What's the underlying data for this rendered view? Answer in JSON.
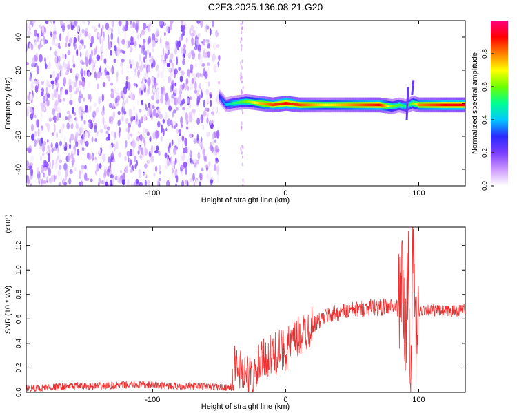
{
  "title": "C2E3.2025.136.08.21.G20",
  "chart_data": [
    {
      "type": "heatmap",
      "title": "C2E3.2025.136.08.21.G20",
      "xlabel": "Height of straight line (km)",
      "ylabel": "Frequency (Hz)",
      "xlim": [
        -195,
        135
      ],
      "ylim": [
        -50,
        50
      ],
      "xticks": [
        -100,
        0,
        100
      ],
      "xtick_labels": [
        "-100",
        "0",
        "100"
      ],
      "yticks": [
        -40,
        -20,
        0,
        20,
        40
      ],
      "ytick_labels": [
        "-40",
        "-20",
        "0",
        "20",
        "40"
      ],
      "noise_region_x": [
        -195,
        -50
      ],
      "signal_trace": {
        "name": "",
        "x": [
          -50,
          -45,
          -40,
          -30,
          -20,
          -10,
          0,
          10,
          30,
          50,
          70,
          80,
          85,
          90,
          95,
          100,
          120,
          135
        ],
        "y": [
          4,
          -1,
          0,
          1,
          0,
          -1,
          0,
          -1,
          -1,
          -1,
          -1,
          -2,
          -1,
          -2,
          0,
          -1,
          -1,
          -1
        ],
        "amplitude": [
          0.3,
          0.4,
          0.5,
          0.6,
          0.75,
          0.85,
          0.9,
          0.85,
          0.7,
          0.8,
          0.9,
          0.6,
          0.55,
          0.5,
          0.6,
          0.8,
          0.9,
          0.9
        ]
      },
      "colorbar": {
        "label": "Normalized spectral amplitude",
        "range": [
          0,
          1
        ],
        "ticks": [
          0.0,
          0.2,
          0.4,
          0.6,
          0.8
        ],
        "tick_labels": [
          "0.0",
          "0.2",
          "0.4",
          "0.6",
          "0.8"
        ],
        "colormap": [
          "#ffffff",
          "#cc99ff",
          "#7a3cff",
          "#2a2aff",
          "#00c8ff",
          "#00ff90",
          "#6cff00",
          "#ffff00",
          "#ff8000",
          "#ff0000",
          "#ff0080"
        ]
      }
    },
    {
      "type": "line",
      "xlabel": "Height of straight line (km)",
      "ylabel": "SNR (10 * v/v)",
      "y_multiplier_label": "(x10⁴)",
      "xlim": [
        -195,
        135
      ],
      "ylim": [
        0,
        1.35
      ],
      "xticks": [
        -100,
        0,
        100
      ],
      "xtick_labels": [
        "-100",
        "0",
        "100"
      ],
      "yticks": [
        0.0,
        0.2,
        0.4,
        0.6,
        0.8,
        1.0,
        1.2
      ],
      "ytick_labels": [
        "0.0",
        "0.2",
        "0.4",
        "0.6",
        "0.8",
        "1.0",
        "1.2"
      ],
      "series": [
        {
          "name": "",
          "color": "#f03030",
          "x": [
            -195,
            -180,
            -160,
            -140,
            -120,
            -100,
            -80,
            -60,
            -50,
            -40,
            -38,
            -35,
            -30,
            -25,
            -20,
            -15,
            -10,
            -5,
            0,
            5,
            10,
            15,
            20,
            25,
            30,
            35,
            40,
            45,
            50,
            55,
            60,
            65,
            70,
            75,
            80,
            85,
            88,
            90,
            92,
            94,
            96,
            98,
            100,
            105,
            110,
            120,
            130,
            135
          ],
          "y": [
            0.03,
            0.04,
            0.05,
            0.05,
            0.06,
            0.06,
            0.05,
            0.05,
            0.04,
            0.04,
            0.25,
            0.2,
            0.15,
            0.1,
            0.22,
            0.28,
            0.3,
            0.33,
            0.35,
            0.4,
            0.45,
            0.5,
            0.55,
            0.58,
            0.62,
            0.64,
            0.65,
            0.66,
            0.67,
            0.68,
            0.69,
            0.7,
            0.69,
            0.7,
            0.7,
            0.69,
            0.9,
            0.3,
            1.1,
            0.1,
            1.25,
            0.3,
            0.66,
            0.68,
            0.67,
            0.66,
            0.67,
            0.68
          ]
        }
      ]
    }
  ]
}
